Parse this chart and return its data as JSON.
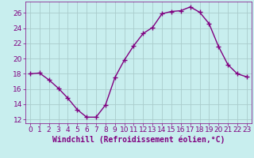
{
  "x": [
    0,
    1,
    2,
    3,
    4,
    5,
    6,
    7,
    8,
    9,
    10,
    11,
    12,
    13,
    14,
    15,
    16,
    17,
    18,
    19,
    20,
    21,
    22,
    23
  ],
  "y": [
    18.0,
    18.1,
    17.2,
    16.1,
    14.8,
    13.3,
    12.3,
    12.3,
    13.9,
    17.5,
    19.8,
    21.7,
    23.3,
    24.1,
    25.9,
    26.2,
    26.3,
    26.8,
    26.1,
    24.6,
    21.6,
    19.2,
    18.0,
    17.6
  ],
  "line_color": "#800080",
  "marker": "+",
  "marker_size": 4,
  "line_width": 1.0,
  "bg_color": "#c8eeee",
  "grid_color": "#aacccc",
  "xlabel": "Windchill (Refroidissement éolien,°C)",
  "xlabel_fontsize": 7,
  "tick_fontsize": 6.5,
  "xlim": [
    -0.5,
    23.5
  ],
  "ylim": [
    11.5,
    27.5
  ],
  "yticks": [
    12,
    14,
    16,
    18,
    20,
    22,
    24,
    26
  ],
  "xticks": [
    0,
    1,
    2,
    3,
    4,
    5,
    6,
    7,
    8,
    9,
    10,
    11,
    12,
    13,
    14,
    15,
    16,
    17,
    18,
    19,
    20,
    21,
    22,
    23
  ]
}
